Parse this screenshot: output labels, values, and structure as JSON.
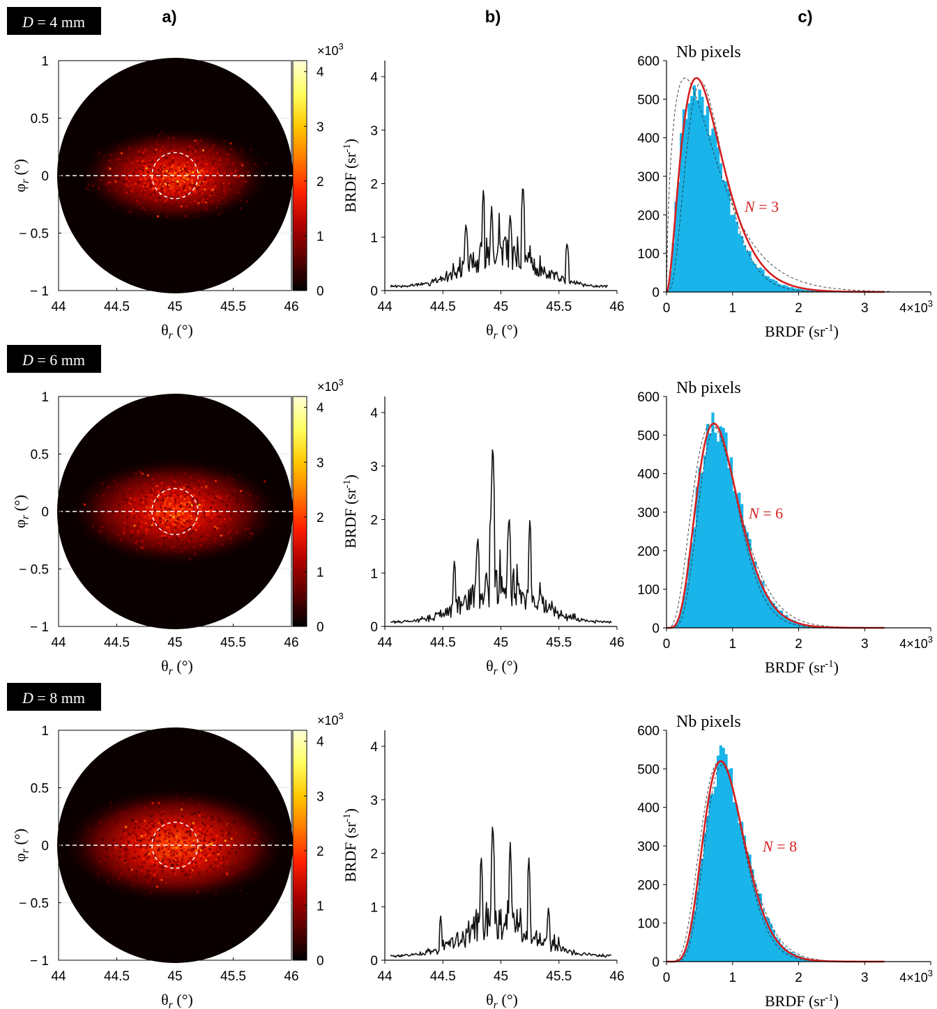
{
  "panel_letters": [
    "a)",
    "b)",
    "c)"
  ],
  "rows": [
    {
      "d_label": "D",
      "d_value": " = 4 mm",
      "n_label": "N",
      "n_value": " = 3"
    },
    {
      "d_label": "D",
      "d_value": " = 6 mm",
      "n_label": "N",
      "n_value": " = 6"
    },
    {
      "d_label": "D",
      "d_value": " = 8 mm",
      "n_label": "N",
      "n_value": " = 8"
    }
  ],
  "colorbar": {
    "multiplier": "×10",
    "exponent": "3",
    "ticks": [
      "4",
      "3",
      "2",
      "1",
      "0"
    ],
    "colors": [
      "#000000",
      "#5a0000",
      "#b00000",
      "#ff2000",
      "#ff7a00",
      "#ffc800",
      "#ffff60",
      "#ffffd8"
    ]
  },
  "colors": {
    "histogram": "#19b4ea",
    "fit_line": "#d42020",
    "n_label": "#d42020",
    "profile_line": "#111111"
  },
  "chart_data": [
    {
      "type": "heatmap",
      "panel": "a",
      "x_ticks": [
        "44",
        "44.5",
        "45",
        "45.5",
        "46"
      ],
      "y_ticks": [
        "1",
        "0.5",
        "0",
        "− 0.5",
        "− 1"
      ],
      "xlim": [
        44,
        46
      ],
      "ylim": [
        -1,
        1
      ],
      "xlabel_symbol": "θ",
      "xlabel_sub": "r",
      "xlabel_unit": " (°)",
      "ylabel_symbol": "φ",
      "ylabel_sub": "r",
      "ylabel_unit": " (°)",
      "colorbar_range": [
        0,
        4200
      ],
      "spot_spread": [
        0.28,
        0.36,
        0.42
      ],
      "spot_peak_level": [
        0.45,
        0.45,
        0.5
      ]
    },
    {
      "type": "line",
      "panel": "b",
      "x_ticks": [
        "44",
        "44.5",
        "45",
        "45.5",
        "46"
      ],
      "y_ticks": [
        "0",
        "1",
        "2",
        "3",
        "4"
      ],
      "xlim": [
        44,
        46
      ],
      "ylim": [
        0,
        4.3
      ],
      "xlabel_symbol": "θ",
      "xlabel_sub": "r",
      "xlabel_unit": " (°)",
      "ylabel": "BRDF (sr",
      "ylabel_exp": "-1",
      "ylabel_close": ")",
      "series": [
        {
          "row": 0,
          "peaks": [
            [
              44.85,
              1.95
            ],
            [
              45.19,
              2.05
            ],
            [
              45.08,
              1.45
            ],
            [
              44.92,
              1.55
            ],
            [
              45.57,
              0.9
            ],
            [
              44.7,
              1.3
            ]
          ],
          "tail_start": 44.05,
          "tail_end": 45.92
        },
        {
          "row": 1,
          "peaks": [
            [
              44.93,
              3.55
            ],
            [
              44.91,
              2.1
            ],
            [
              45.07,
              2.15
            ],
            [
              45.25,
              2.05
            ],
            [
              44.8,
              1.7
            ],
            [
              44.6,
              1.25
            ]
          ],
          "tail_start": 44.05,
          "tail_end": 45.95
        },
        {
          "row": 2,
          "peaks": [
            [
              44.93,
              2.65
            ],
            [
              45.08,
              2.2
            ],
            [
              44.83,
              2.0
            ],
            [
              45.24,
              1.95
            ],
            [
              45.41,
              0.95
            ],
            [
              44.48,
              0.8
            ]
          ],
          "tail_start": 44.05,
          "tail_end": 45.95
        }
      ]
    },
    {
      "type": "bar",
      "panel": "c",
      "x_ticks": [
        "0",
        "1",
        "2",
        "3"
      ],
      "x_multiplier": "4×10",
      "x_exponent": "3",
      "y_ticks": [
        "0",
        "100",
        "200",
        "300",
        "400",
        "500",
        "600"
      ],
      "xlim": [
        0,
        4000
      ],
      "ylim": [
        0,
        600
      ],
      "title": "Nb pixels",
      "xlabel": "BRDF (sr",
      "xlabel_exp": "-1",
      "xlabel_close": ")",
      "series": [
        {
          "row": 0,
          "N": 3,
          "mean": 680,
          "peak_count": 555
        },
        {
          "row": 1,
          "N": 6,
          "mean": 860,
          "peak_count": 530
        },
        {
          "row": 2,
          "N": 8,
          "mean": 940,
          "peak_count": 520
        }
      ]
    }
  ]
}
